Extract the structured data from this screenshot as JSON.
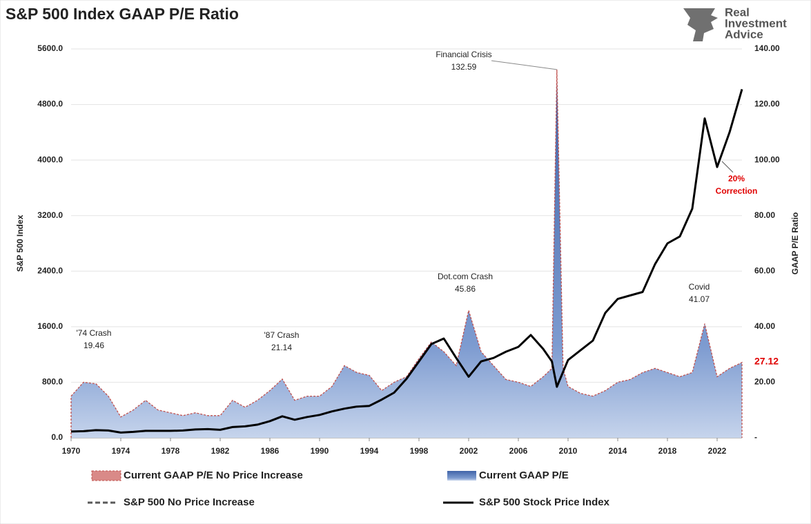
{
  "chart_data": {
    "type": "area-line",
    "title": "S&P 500 Index GAAP P/E Ratio",
    "logo": [
      "Real",
      "Investment",
      "Advice"
    ],
    "ylabel": "S&P 500 Index",
    "y2label": "GAAP P/E Ratio",
    "x": [
      1970,
      1971,
      1972,
      1973,
      1974,
      1975,
      1976,
      1977,
      1978,
      1979,
      1980,
      1981,
      1982,
      1983,
      1984,
      1985,
      1986,
      1987,
      1988,
      1989,
      1990,
      1991,
      1992,
      1993,
      1994,
      1995,
      1996,
      1997,
      1998,
      1999,
      2000,
      2001,
      2002,
      2003,
      2004,
      2005,
      2006,
      2007,
      2008,
      2008.7,
      2009.1,
      2009.6,
      2010,
      2011,
      2012,
      2013,
      2014,
      2015,
      2016,
      2017,
      2018,
      2019,
      2020,
      2021,
      2022,
      2023,
      2024
    ],
    "xlim": [
      1970,
      2024
    ],
    "xticks": [
      1970,
      1974,
      1978,
      1982,
      1986,
      1990,
      1994,
      1998,
      2002,
      2006,
      2010,
      2014,
      2018,
      2022
    ],
    "ylim": [
      0,
      5600
    ],
    "yticks": [
      {
        "value": 0,
        "label": "0.0"
      },
      {
        "value": 800,
        "label": "800.0"
      },
      {
        "value": 1600,
        "label": "1600.0"
      },
      {
        "value": 2400,
        "label": "2400.0"
      },
      {
        "value": 3200,
        "label": "3200.0"
      },
      {
        "value": 4000,
        "label": "4000.0"
      },
      {
        "value": 4800,
        "label": "4800.0"
      },
      {
        "value": 5600,
        "label": "5600.0"
      }
    ],
    "y2lim": [
      0,
      140
    ],
    "y2ticks": [
      {
        "value": 0,
        "label": "-"
      },
      {
        "value": 20,
        "label": "20.00"
      },
      {
        "value": 40,
        "label": "40.00"
      },
      {
        "value": 60,
        "label": "60.00"
      },
      {
        "value": 80,
        "label": "80.00"
      },
      {
        "value": 100,
        "label": "100.00"
      },
      {
        "value": 120,
        "label": "120.00"
      },
      {
        "value": 140,
        "label": "140.00"
      }
    ],
    "grid": true,
    "series": [
      {
        "name": "Current GAAP P/E",
        "color": "#5b7fbf",
        "axis": "y2",
        "values": [
          15,
          20,
          19.46,
          15,
          7.5,
          10,
          13.5,
          10,
          9,
          8,
          9,
          8,
          8,
          13.5,
          11,
          13.5,
          17,
          21.14,
          13.5,
          15,
          15,
          18.5,
          26,
          23.5,
          22.5,
          17,
          20,
          22,
          28.5,
          34.5,
          31,
          26,
          45.86,
          31,
          26,
          21,
          20,
          18.5,
          22,
          25,
          132.59,
          25,
          18.5,
          16,
          15,
          17,
          20,
          21,
          23.5,
          25,
          23.5,
          22,
          23.5,
          41.07,
          22,
          25,
          27.12
        ]
      },
      {
        "name": "Current GAAP P/E No Price Increase",
        "color": "#c0504d",
        "axis": "y2",
        "values": [
          15,
          20,
          19.46,
          15,
          7.5,
          10,
          13.5,
          10,
          9,
          8,
          9,
          8,
          8,
          13.5,
          11,
          13.5,
          17,
          21.14,
          13.5,
          15,
          15,
          18.5,
          26,
          23.5,
          22.5,
          17,
          20,
          22,
          28.5,
          34.5,
          31,
          26,
          45.86,
          31,
          26,
          21,
          20,
          18.5,
          22,
          25,
          132.59,
          25,
          18.5,
          16,
          15,
          17,
          20,
          21,
          23.5,
          25,
          23.5,
          22,
          23.5,
          41.07,
          22,
          25,
          27.12
        ]
      },
      {
        "name": "S&P 500 Stock Price Index",
        "color": "#000000",
        "values": [
          90,
          95,
          110,
          105,
          75,
          85,
          100,
          100,
          100,
          105,
          120,
          125,
          115,
          155,
          165,
          190,
          240,
          310,
          260,
          300,
          330,
          380,
          420,
          450,
          460,
          550,
          650,
          850,
          1100,
          1350,
          1430,
          1150,
          880,
          1100,
          1150,
          1240,
          1310,
          1480,
          1280,
          1100,
          735,
          950,
          1120,
          1260,
          1400,
          1800,
          2000,
          2050,
          2100,
          2500,
          2800,
          2900,
          3300,
          4600,
          3900,
          4400,
          5020
        ]
      },
      {
        "name": "S&P 500 No Price Increase",
        "color": "#595959",
        "values": [
          null,
          null,
          null,
          null,
          null,
          null,
          null,
          null,
          null,
          null,
          null,
          null,
          null,
          null,
          null,
          null,
          null,
          null,
          null,
          null,
          null,
          null,
          null,
          null,
          null,
          null,
          null,
          null,
          null,
          null,
          null,
          null,
          null,
          null,
          null,
          null,
          null,
          null,
          null,
          null,
          null,
          null,
          null,
          null,
          null,
          null,
          null,
          null,
          null,
          null,
          null,
          null,
          null,
          null,
          null,
          null,
          5020
        ]
      }
    ],
    "annotations": [
      "'74 Crash",
      "'87 Crash",
      "Dot.com Crash",
      "Financial Crisis",
      "Covid"
    ],
    "correction_note": [
      "20%",
      "Correction"
    ]
  }
}
